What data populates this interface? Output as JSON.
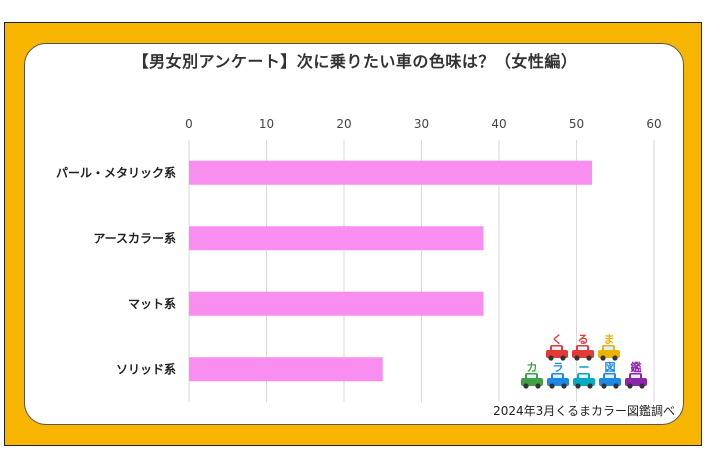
{
  "chart_data": {
    "type": "bar",
    "orientation": "horizontal",
    "title": "【男女別アンケート】次に乗りたい車の色味は？（女性編）",
    "categories": [
      "パール・メタリック系",
      "アースカラー系",
      "マット系",
      "ソリッド系"
    ],
    "values": [
      52,
      38,
      38,
      25
    ],
    "xlim": [
      0,
      60
    ],
    "xticks": [
      0,
      10,
      20,
      30,
      40,
      50,
      60
    ],
    "grid": true,
    "bar_color": "#f98ef0",
    "axis_position": "top"
  },
  "frame_color": "#f8b500",
  "source": "2024年3月くるまカラー図鑑調べ",
  "logo": {
    "line1": [
      "く",
      "る",
      "ま"
    ],
    "line2": [
      "カ",
      "ラ",
      "ー",
      "図",
      "鑑"
    ],
    "line1_colors": [
      "#e53935",
      "#e53935",
      "#e8b400"
    ],
    "line2_colors": [
      "#43a047",
      "#1e88e5",
      "#00acc1",
      "#1e88e5",
      "#8e24aa"
    ]
  }
}
